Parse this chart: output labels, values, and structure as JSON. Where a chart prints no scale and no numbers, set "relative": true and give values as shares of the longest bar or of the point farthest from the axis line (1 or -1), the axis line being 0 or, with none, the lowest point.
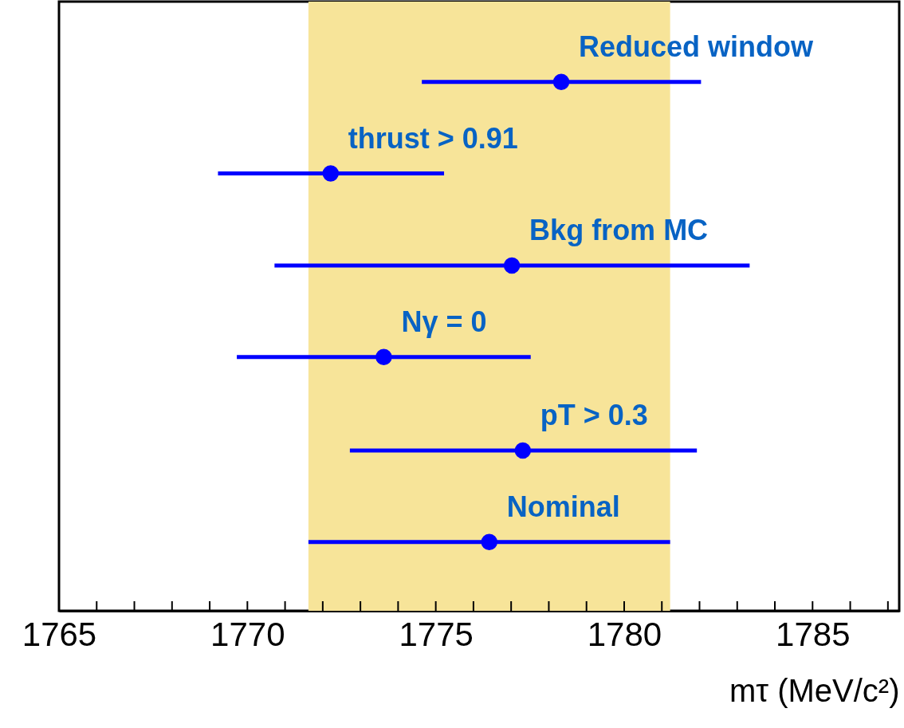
{
  "chart_data": {
    "type": "scatter",
    "relative": true,
    "x": [
      1778.33,
      1772.21,
      1777.02,
      1773.62,
      1777.31,
      1776.42
    ],
    "values": [
      1,
      0.827,
      0.653,
      0.48,
      0.303,
      0.13
    ],
    "xerrors": [
      [
        1774.63,
        1782.04
      ],
      [
        1769.22,
        1775.22
      ],
      [
        1770.72,
        1783.33
      ],
      [
        1769.72,
        1777.52
      ],
      [
        1772.72,
        1781.93
      ],
      [
        1771.62,
        1781.22
      ]
    ],
    "color": "#0000ff",
    "annotations": [
      "Reduced window",
      "thrust > 0.91",
      "Bkg from MC",
      "Nγ = 0",
      "pT > 0.3",
      "Nominal"
    ],
    "xlabel": "mτ (MeV/c²)",
    "xlim": [
      1765,
      1787.3
    ],
    "xticks": [
      1765,
      {
        "value": 1766,
        "label": null
      },
      {
        "value": 1767,
        "label": null
      },
      {
        "value": 1768,
        "label": null
      },
      {
        "value": 1769,
        "label": null
      },
      1770,
      {
        "value": 1771,
        "label": null
      },
      {
        "value": 1772,
        "label": null
      },
      {
        "value": 1773,
        "label": null
      },
      {
        "value": 1774,
        "label": null
      },
      1775,
      {
        "value": 1776,
        "label": null
      },
      {
        "value": 1777,
        "label": null
      },
      {
        "value": 1778,
        "label": null
      },
      {
        "value": 1779,
        "label": null
      },
      1780,
      {
        "value": 1781,
        "label": null
      },
      {
        "value": 1782,
        "label": null
      },
      {
        "value": 1783,
        "label": null
      },
      {
        "value": 1784,
        "label": null
      },
      1785,
      {
        "value": 1786,
        "label": null
      },
      {
        "value": 1787,
        "label": null
      }
    ],
    "bands": [
      {
        "axis": "x",
        "from": 1771.62,
        "to": 1781.22,
        "color": "#f7e499"
      }
    ],
    "tick_labels": "x",
    "grid": false,
    "marker": "circle"
  }
}
